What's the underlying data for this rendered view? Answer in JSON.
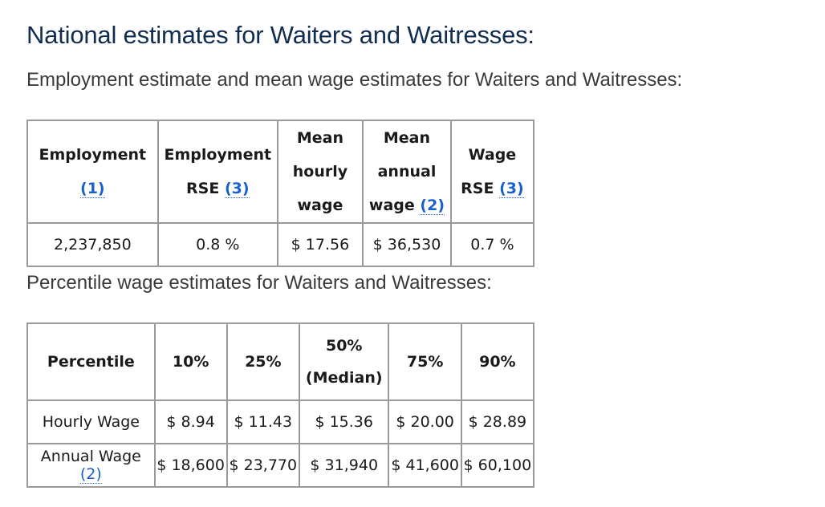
{
  "title": "National estimates for Waiters and Waitresses:",
  "subtitle": "Employment estimate and mean wage estimates for Waiters and Waitresses:",
  "table1": {
    "headers": [
      {
        "text": "Employment",
        "link": "(1)"
      },
      {
        "line1": "Employment",
        "line2": "RSE",
        "link": "(3)"
      },
      {
        "line1": "Mean hourly",
        "line2": "wage"
      },
      {
        "line1": "Mean annual",
        "line2": "wage",
        "link": "(2)"
      },
      {
        "text": "Wage RSE",
        "link": "(3)"
      }
    ],
    "row": [
      "2,237,850",
      "0.8 %",
      "$ 17.56",
      "$ 36,530",
      "0.7 %"
    ]
  },
  "subtitle2": "Percentile wage estimates for Waiters and Waitresses:",
  "table2": {
    "headers": [
      "Percentile",
      "10%",
      "25%",
      "50%",
      "(Median)",
      "75%",
      "90%"
    ],
    "rows": [
      {
        "label": "Hourly Wage",
        "values": [
          "$ 8.94",
          "$ 11.43",
          "$ 15.36",
          "$ 20.00",
          "$ 28.89"
        ]
      },
      {
        "label": "Annual Wage",
        "link": "(2)",
        "values": [
          "$ 18,600",
          "$ 23,770",
          "$ 31,940",
          "$ 41,600",
          "$ 60,100"
        ]
      }
    ]
  }
}
